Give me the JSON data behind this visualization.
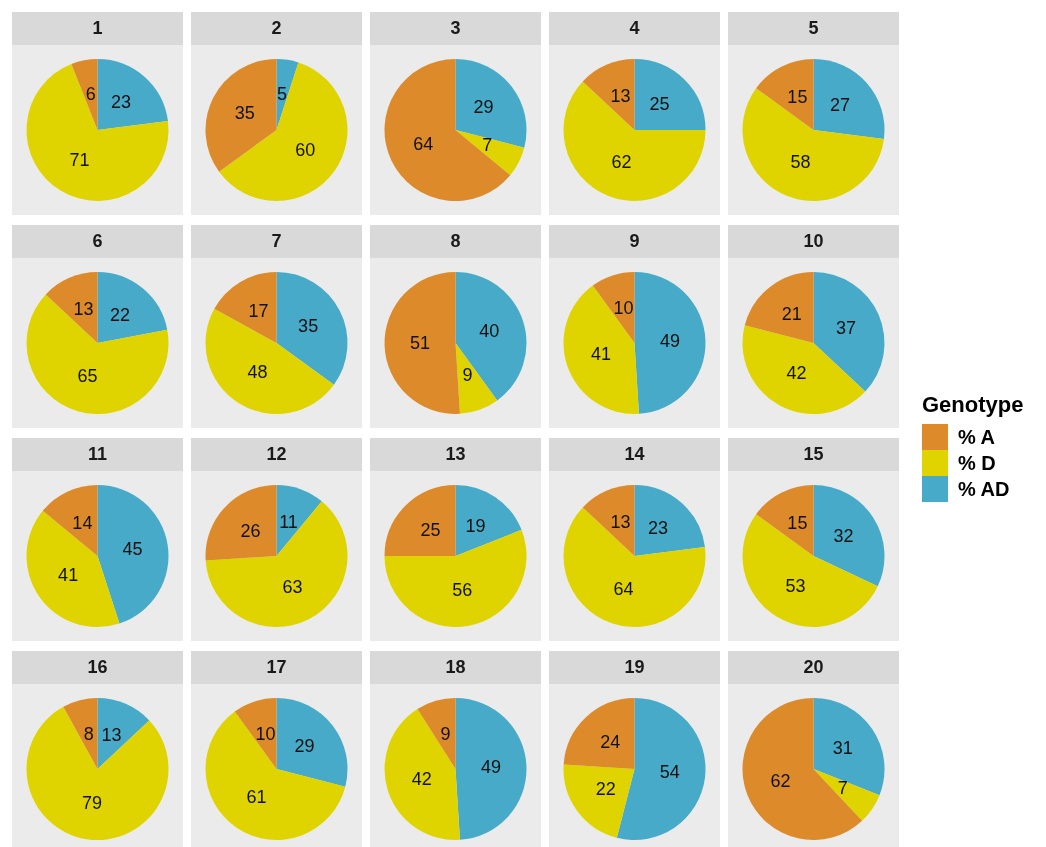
{
  "chart_data": [
    {
      "type": "pie",
      "title": "1",
      "categories": [
        "% A",
        "% D",
        "% AD"
      ],
      "values": [
        6,
        71,
        23
      ],
      "colors": [
        "#dd8a2b",
        "#e0d400",
        "#47aac8"
      ],
      "data_labels": true,
      "legend": "right",
      "legend_title": "Genotype"
    },
    {
      "type": "pie",
      "title": "2",
      "values": [
        35,
        60,
        5
      ],
      "colors": [
        "#dd8a2b",
        "#e0d400",
        "#47aac8"
      ],
      "data_labels": true
    },
    {
      "type": "pie",
      "title": "3",
      "values": [
        64,
        7,
        29
      ],
      "colors": [
        "#dd8a2b",
        "#e0d400",
        "#47aac8"
      ],
      "data_labels": true
    },
    {
      "type": "pie",
      "title": "4",
      "values": [
        13,
        62,
        25
      ],
      "colors": [
        "#dd8a2b",
        "#e0d400",
        "#47aac8"
      ],
      "data_labels": true
    },
    {
      "type": "pie",
      "title": "5",
      "values": [
        15,
        58,
        27
      ],
      "colors": [
        "#dd8a2b",
        "#e0d400",
        "#47aac8"
      ],
      "data_labels": true
    },
    {
      "type": "pie",
      "title": "6",
      "values": [
        13,
        65,
        22
      ],
      "colors": [
        "#dd8a2b",
        "#e0d400",
        "#47aac8"
      ],
      "data_labels": true
    },
    {
      "type": "pie",
      "title": "7",
      "values": [
        17,
        48,
        35
      ],
      "colors": [
        "#dd8a2b",
        "#e0d400",
        "#47aac8"
      ],
      "data_labels": true
    },
    {
      "type": "pie",
      "title": "8",
      "values": [
        51,
        9,
        40
      ],
      "colors": [
        "#dd8a2b",
        "#e0d400",
        "#47aac8"
      ],
      "data_labels": true
    },
    {
      "type": "pie",
      "title": "9",
      "values": [
        10,
        41,
        49
      ],
      "colors": [
        "#dd8a2b",
        "#e0d400",
        "#47aac8"
      ],
      "data_labels": true
    },
    {
      "type": "pie",
      "title": "10",
      "values": [
        21,
        42,
        37
      ],
      "colors": [
        "#dd8a2b",
        "#e0d400",
        "#47aac8"
      ],
      "data_labels": true
    },
    {
      "type": "pie",
      "title": "11",
      "values": [
        14,
        41,
        45
      ],
      "colors": [
        "#dd8a2b",
        "#e0d400",
        "#47aac8"
      ],
      "data_labels": true
    },
    {
      "type": "pie",
      "title": "12",
      "values": [
        26,
        63,
        11
      ],
      "colors": [
        "#dd8a2b",
        "#e0d400",
        "#47aac8"
      ],
      "data_labels": true
    },
    {
      "type": "pie",
      "title": "13",
      "values": [
        25,
        56,
        19
      ],
      "colors": [
        "#dd8a2b",
        "#e0d400",
        "#47aac8"
      ],
      "data_labels": true
    },
    {
      "type": "pie",
      "title": "14",
      "values": [
        13,
        64,
        23
      ],
      "colors": [
        "#dd8a2b",
        "#e0d400",
        "#47aac8"
      ],
      "data_labels": true
    },
    {
      "type": "pie",
      "title": "15",
      "values": [
        15,
        53,
        32
      ],
      "colors": [
        "#dd8a2b",
        "#e0d400",
        "#47aac8"
      ],
      "data_labels": true
    },
    {
      "type": "pie",
      "title": "16",
      "values": [
        8,
        79,
        13
      ],
      "colors": [
        "#dd8a2b",
        "#e0d400",
        "#47aac8"
      ],
      "data_labels": true
    },
    {
      "type": "pie",
      "title": "17",
      "values": [
        10,
        61,
        29
      ],
      "colors": [
        "#dd8a2b",
        "#e0d400",
        "#47aac8"
      ],
      "data_labels": true
    },
    {
      "type": "pie",
      "title": "18",
      "values": [
        9,
        42,
        49
      ],
      "colors": [
        "#dd8a2b",
        "#e0d400",
        "#47aac8"
      ],
      "data_labels": true
    },
    {
      "type": "pie",
      "title": "19",
      "values": [
        24,
        22,
        54
      ],
      "colors": [
        "#dd8a2b",
        "#e0d400",
        "#47aac8"
      ],
      "data_labels": true
    },
    {
      "type": "pie",
      "title": "20",
      "values": [
        62,
        7,
        31
      ],
      "colors": [
        "#dd8a2b",
        "#e0d400",
        "#47aac8"
      ],
      "data_labels": true
    }
  ]
}
